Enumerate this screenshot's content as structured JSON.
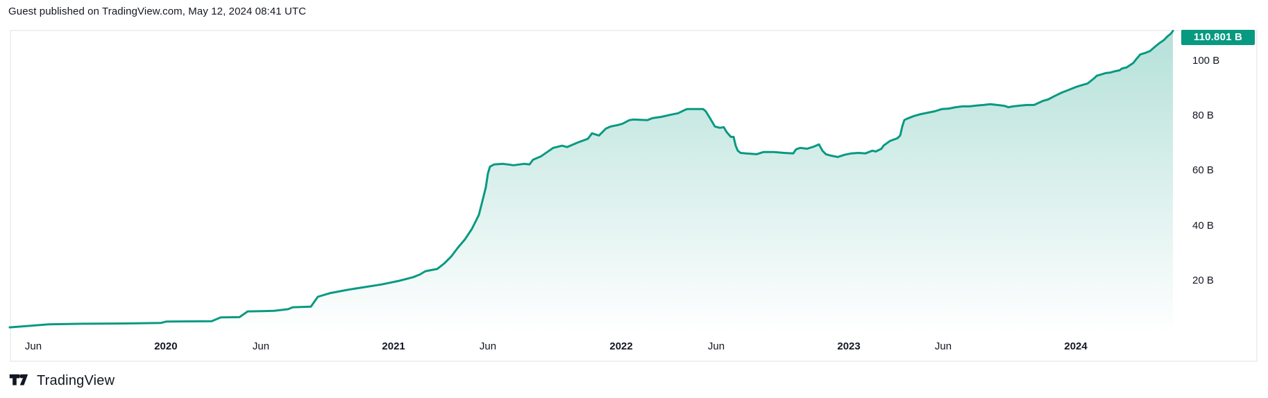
{
  "header": {
    "text": "Guest published on TradingView.com, May 12, 2024 08:41 UTC"
  },
  "footer": {
    "brand": "TradingView"
  },
  "price_scale": {
    "current_label": "110.801 B",
    "current_value": 110.801
  },
  "colors": {
    "line": "#089981",
    "label_bg": "#089981",
    "text": "#131722",
    "frame": "#eef0f3"
  },
  "chart_data": {
    "type": "area",
    "title": "",
    "xlabel": "",
    "ylabel": "",
    "y_unit": "B",
    "ylim": [
      0,
      113
    ],
    "grid": false,
    "legend": false,
    "last_value": 110.801,
    "last_value_label": "110.801 B",
    "y_ticks": [
      {
        "label": "100 B",
        "value": 100
      },
      {
        "label": "80 B",
        "value": 80
      },
      {
        "label": "60 B",
        "value": 60
      },
      {
        "label": "40 B",
        "value": 40
      },
      {
        "label": "20 B",
        "value": 20
      }
    ],
    "x_ticks": [
      {
        "label": "Jun",
        "f": 0.0203
      },
      {
        "label": "2020",
        "f": 0.1342
      },
      {
        "label": "Jun",
        "f": 0.216
      },
      {
        "label": "2021",
        "f": 0.33
      },
      {
        "label": "Jun",
        "f": 0.4111
      },
      {
        "label": "2022",
        "f": 0.5257
      },
      {
        "label": "Jun",
        "f": 0.6074
      },
      {
        "label": "2023",
        "f": 0.7214
      },
      {
        "label": "Jun",
        "f": 0.8025
      },
      {
        "label": "2024",
        "f": 0.9165
      }
    ],
    "points": [
      [
        0.0,
        3.1
      ],
      [
        0.0155,
        3.6
      ],
      [
        0.0334,
        4.2
      ],
      [
        0.0632,
        4.4
      ],
      [
        0.099,
        4.5
      ],
      [
        0.1301,
        4.7
      ],
      [
        0.1348,
        5.2
      ],
      [
        0.1736,
        5.3
      ],
      [
        0.1814,
        6.7
      ],
      [
        0.1975,
        6.8
      ],
      [
        0.2046,
        8.9
      ],
      [
        0.2273,
        9.1
      ],
      [
        0.2393,
        9.7
      ],
      [
        0.2434,
        10.4
      ],
      [
        0.2589,
        10.6
      ],
      [
        0.2649,
        14.2
      ],
      [
        0.275,
        15.5
      ],
      [
        0.29,
        16.7
      ],
      [
        0.3049,
        17.7
      ],
      [
        0.3198,
        18.7
      ],
      [
        0.3347,
        20.0
      ],
      [
        0.3467,
        21.3
      ],
      [
        0.3526,
        22.3
      ],
      [
        0.3574,
        23.5
      ],
      [
        0.3675,
        24.3
      ],
      [
        0.3735,
        26.3
      ],
      [
        0.3795,
        28.8
      ],
      [
        0.3854,
        32.1
      ],
      [
        0.3914,
        35.1
      ],
      [
        0.3974,
        38.9
      ],
      [
        0.4033,
        43.9
      ],
      [
        0.4063,
        48.9
      ],
      [
        0.4093,
        54.0
      ],
      [
        0.4111,
        59.0
      ],
      [
        0.4129,
        61.5
      ],
      [
        0.4165,
        62.3
      ],
      [
        0.4242,
        62.5
      ],
      [
        0.4332,
        62.0
      ],
      [
        0.4421,
        62.5
      ],
      [
        0.4469,
        62.3
      ],
      [
        0.4499,
        64.0
      ],
      [
        0.457,
        65.3
      ],
      [
        0.4672,
        68.3
      ],
      [
        0.4749,
        69.1
      ],
      [
        0.4791,
        68.6
      ],
      [
        0.4886,
        70.3
      ],
      [
        0.497,
        71.6
      ],
      [
        0.5006,
        73.6
      ],
      [
        0.5066,
        72.8
      ],
      [
        0.5125,
        75.3
      ],
      [
        0.5167,
        76.1
      ],
      [
        0.5227,
        76.6
      ],
      [
        0.5268,
        77.1
      ],
      [
        0.5328,
        78.4
      ],
      [
        0.5364,
        78.6
      ],
      [
        0.5483,
        78.4
      ],
      [
        0.5525,
        79.1
      ],
      [
        0.5602,
        79.6
      ],
      [
        0.5686,
        80.4
      ],
      [
        0.5746,
        80.9
      ],
      [
        0.5805,
        82.1
      ],
      [
        0.5823,
        82.4
      ],
      [
        0.5961,
        82.4
      ],
      [
        0.5984,
        81.6
      ],
      [
        0.602,
        79.1
      ],
      [
        0.6062,
        76.1
      ],
      [
        0.6104,
        75.6
      ],
      [
        0.6139,
        75.8
      ],
      [
        0.6163,
        74.1
      ],
      [
        0.6199,
        72.3
      ],
      [
        0.6223,
        72.3
      ],
      [
        0.6241,
        69.1
      ],
      [
        0.6259,
        67.3
      ],
      [
        0.6283,
        66.5
      ],
      [
        0.633,
        66.3
      ],
      [
        0.642,
        66.0
      ],
      [
        0.6479,
        66.8
      ],
      [
        0.6569,
        66.8
      ],
      [
        0.6658,
        66.5
      ],
      [
        0.6736,
        66.3
      ],
      [
        0.676,
        67.8
      ],
      [
        0.6796,
        68.3
      ],
      [
        0.6855,
        68.0
      ],
      [
        0.6915,
        68.8
      ],
      [
        0.6957,
        69.6
      ],
      [
        0.6987,
        67.3
      ],
      [
        0.7017,
        66.0
      ],
      [
        0.7058,
        65.5
      ],
      [
        0.7118,
        65.0
      ],
      [
        0.7178,
        65.8
      ],
      [
        0.7237,
        66.3
      ],
      [
        0.7297,
        66.5
      ],
      [
        0.7357,
        66.3
      ],
      [
        0.7416,
        67.3
      ],
      [
        0.7446,
        67.0
      ],
      [
        0.7494,
        68.0
      ],
      [
        0.7512,
        69.1
      ],
      [
        0.7566,
        70.8
      ],
      [
        0.7631,
        71.8
      ],
      [
        0.7655,
        72.8
      ],
      [
        0.7673,
        76.1
      ],
      [
        0.7691,
        78.4
      ],
      [
        0.7715,
        78.9
      ],
      [
        0.7774,
        79.9
      ],
      [
        0.7834,
        80.6
      ],
      [
        0.7894,
        81.1
      ],
      [
        0.7953,
        81.6
      ],
      [
        0.8013,
        82.4
      ],
      [
        0.8073,
        82.6
      ],
      [
        0.8132,
        83.1
      ],
      [
        0.8192,
        83.4
      ],
      [
        0.8251,
        83.4
      ],
      [
        0.8311,
        83.7
      ],
      [
        0.8371,
        83.9
      ],
      [
        0.843,
        84.2
      ],
      [
        0.849,
        83.9
      ],
      [
        0.855,
        83.6
      ],
      [
        0.8585,
        83.1
      ],
      [
        0.8627,
        83.4
      ],
      [
        0.8687,
        83.7
      ],
      [
        0.8747,
        83.9
      ],
      [
        0.8806,
        83.9
      ],
      [
        0.8884,
        85.4
      ],
      [
        0.8926,
        85.9
      ],
      [
        0.8985,
        87.2
      ],
      [
        0.9045,
        88.4
      ],
      [
        0.9105,
        89.4
      ],
      [
        0.9164,
        90.4
      ],
      [
        0.9224,
        91.2
      ],
      [
        0.9266,
        91.7
      ],
      [
        0.9326,
        93.7
      ],
      [
        0.9344,
        94.5
      ],
      [
        0.9385,
        95.0
      ],
      [
        0.9421,
        95.5
      ],
      [
        0.9463,
        95.7
      ],
      [
        0.9505,
        96.2
      ],
      [
        0.9541,
        96.5
      ],
      [
        0.9564,
        97.2
      ],
      [
        0.96,
        97.5
      ],
      [
        0.966,
        99.2
      ],
      [
        0.9684,
        100.5
      ],
      [
        0.972,
        102.3
      ],
      [
        0.9761,
        102.8
      ],
      [
        0.9803,
        103.5
      ],
      [
        0.9839,
        104.8
      ],
      [
        0.9881,
        106.3
      ],
      [
        0.9923,
        107.5
      ],
      [
        0.9952,
        108.8
      ],
      [
        0.9982,
        109.8
      ],
      [
        1.0,
        110.8
      ]
    ]
  }
}
